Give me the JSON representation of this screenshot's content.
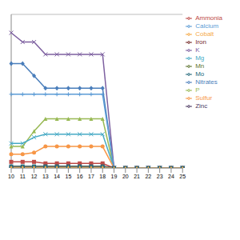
{
  "chart_data": {
    "type": "line",
    "categories": [
      "10",
      "11",
      "12",
      "13",
      "14",
      "15",
      "16",
      "17",
      "18",
      "19",
      "20",
      "21",
      "22",
      "23",
      "24",
      "25"
    ],
    "ylim": [
      0,
      5
    ],
    "yticks": [
      0,
      1,
      2,
      3,
      4,
      5
    ],
    "grid": true,
    "legend": "right",
    "tick_labels": "x",
    "series": [
      {
        "name": "Nitrates",
        "color": "#4a7ebb",
        "marker": "diamond",
        "values": [
          3.4,
          3.4,
          3.0,
          2.6,
          2.6,
          2.6,
          2.6,
          2.6,
          2.6,
          0,
          0,
          0,
          0,
          0,
          0,
          0
        ]
      },
      {
        "name": "Ammonia",
        "color": "#be4b48",
        "marker": "square",
        "values": [
          0.2,
          0.2,
          0.2,
          0.15,
          0.15,
          0.15,
          0.15,
          0.15,
          0.15,
          0,
          0,
          0,
          0,
          0,
          0,
          0
        ]
      },
      {
        "name": "P",
        "color": "#98b954",
        "marker": "triangle",
        "values": [
          0.7,
          0.7,
          1.2,
          1.6,
          1.6,
          1.6,
          1.6,
          1.6,
          1.6,
          0,
          0,
          0,
          0,
          0,
          0,
          0
        ]
      },
      {
        "name": "K",
        "color": "#7d60a0",
        "marker": "x",
        "values": [
          4.4,
          4.1,
          4.1,
          3.7,
          3.7,
          3.7,
          3.7,
          3.7,
          3.7,
          0,
          0,
          0,
          0,
          0,
          0,
          0
        ]
      },
      {
        "name": "Mg",
        "color": "#46aac5",
        "marker": "x",
        "values": [
          0.8,
          0.8,
          1.0,
          1.1,
          1.1,
          1.1,
          1.1,
          1.1,
          1.1,
          0,
          0,
          0,
          0,
          0,
          0,
          0
        ]
      },
      {
        "name": "Sulfur",
        "color": "#f79646",
        "marker": "circle",
        "values": [
          0.45,
          0.45,
          0.5,
          0.7,
          0.7,
          0.7,
          0.7,
          0.7,
          0.7,
          0,
          0,
          0,
          0,
          0,
          0,
          0
        ]
      },
      {
        "name": "Calcium",
        "color": "#5b9bd5",
        "marker": "plus",
        "values": [
          2.4,
          2.4,
          2.4,
          2.4,
          2.4,
          2.4,
          2.4,
          2.4,
          2.4,
          0,
          0,
          0,
          0,
          0,
          0,
          0
        ]
      },
      {
        "name": "Iron",
        "color": "#772c2a",
        "marker": "none",
        "values": [
          0.06,
          0.06,
          0.06,
          0.06,
          0.06,
          0.06,
          0.06,
          0.06,
          0.06,
          0,
          0,
          0,
          0,
          0,
          0,
          0
        ]
      },
      {
        "name": "Mn",
        "color": "#5f7530",
        "marker": "none",
        "values": [
          0.04,
          0.04,
          0.04,
          0.04,
          0.04,
          0.04,
          0.04,
          0.04,
          0.04,
          0,
          0,
          0,
          0,
          0,
          0,
          0
        ]
      },
      {
        "name": "Zinc",
        "color": "#4d3b62",
        "marker": "circle",
        "values": [
          0.03,
          0.03,
          0.03,
          0.03,
          0.03,
          0.03,
          0.03,
          0.03,
          0.03,
          0,
          0,
          0,
          0,
          0,
          0,
          0
        ]
      },
      {
        "name": "Mo",
        "color": "#276a7c",
        "marker": "square",
        "values": [
          0.05,
          0.05,
          0.05,
          0.05,
          0.05,
          0.05,
          0.05,
          0.05,
          0.05,
          0,
          0,
          0,
          0,
          0,
          0,
          0
        ]
      },
      {
        "name": "Cobalt",
        "color": "#f5a947",
        "marker": "triangle",
        "values": [
          0.02,
          0.02,
          0.02,
          0.02,
          0.02,
          0.02,
          0.02,
          0.02,
          0.02,
          0,
          0,
          0,
          0,
          0,
          0,
          0
        ]
      }
    ]
  }
}
